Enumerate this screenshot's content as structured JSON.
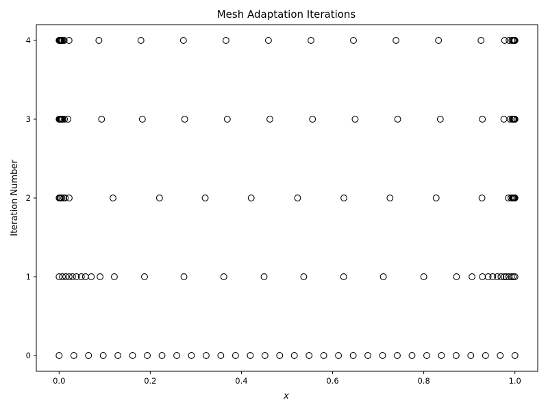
{
  "chart_data": {
    "type": "scatter",
    "title": "Mesh Adaptation Iterations",
    "xlabel": "x",
    "ylabel": "Iteration Number",
    "xlim": [
      -0.05,
      1.05
    ],
    "ylim": [
      -0.2,
      4.2
    ],
    "xticks": [
      0.0,
      0.2,
      0.4,
      0.6,
      0.8,
      1.0
    ],
    "xtick_labels": [
      "0.0",
      "0.2",
      "0.4",
      "0.6",
      "0.8",
      "1.0"
    ],
    "yticks": [
      0,
      1,
      2,
      3,
      4
    ],
    "ytick_labels": [
      "0",
      "1",
      "2",
      "3",
      "4"
    ],
    "grid": false,
    "marker": "open-circle",
    "marker_color": "#000000",
    "series": [
      {
        "iteration": 0,
        "x": [
          0.0,
          0.0323,
          0.0645,
          0.0968,
          0.129,
          0.1613,
          0.1935,
          0.2258,
          0.2581,
          0.2903,
          0.3226,
          0.3548,
          0.3871,
          0.4194,
          0.4516,
          0.4839,
          0.5161,
          0.5484,
          0.5806,
          0.6129,
          0.6452,
          0.6774,
          0.7097,
          0.7419,
          0.7742,
          0.8065,
          0.8387,
          0.871,
          0.9032,
          0.9355,
          0.9677,
          1.0
        ]
      },
      {
        "iteration": 1,
        "x": [
          0.0,
          0.0073,
          0.0147,
          0.022,
          0.0295,
          0.0381,
          0.0488,
          0.0579,
          0.0706,
          0.0899,
          0.1212,
          0.1874,
          0.2739,
          0.3614,
          0.4497,
          0.5367,
          0.6243,
          0.7113,
          0.8,
          0.8718,
          0.9058,
          0.9287,
          0.9412,
          0.9513,
          0.9612,
          0.9694,
          0.9764,
          0.9808,
          0.9865,
          0.9924,
          0.9964,
          1.0
        ]
      },
      {
        "iteration": 2,
        "x": [
          0.0,
          0.0018,
          0.0036,
          0.0063,
          0.0102,
          0.0134,
          0.0221,
          0.1183,
          0.2203,
          0.3205,
          0.4214,
          0.5232,
          0.6248,
          0.7259,
          0.8272,
          0.9277,
          0.9857,
          0.9914,
          0.9941,
          0.9958,
          0.9971,
          0.998,
          0.9986,
          0.999,
          0.9994,
          0.9997,
          0.9999,
          1.0
        ]
      },
      {
        "iteration": 3,
        "x": [
          0.0,
          0.0015,
          0.0029,
          0.0044,
          0.0059,
          0.0081,
          0.0118,
          0.0193,
          0.0932,
          0.1827,
          0.2756,
          0.369,
          0.4624,
          0.5559,
          0.6494,
          0.7428,
          0.8363,
          0.9285,
          0.9757,
          0.9894,
          0.9937,
          0.9962,
          0.9975,
          0.9985,
          0.9991,
          0.9995,
          0.9998,
          1.0
        ]
      },
      {
        "iteration": 4,
        "x": [
          0.0,
          0.0011,
          0.0022,
          0.0033,
          0.0044,
          0.0059,
          0.0081,
          0.0111,
          0.0218,
          0.0873,
          0.1795,
          0.2728,
          0.3661,
          0.4593,
          0.5526,
          0.6458,
          0.7391,
          0.8323,
          0.9256,
          0.9773,
          0.9872,
          0.9933,
          0.9958,
          0.9975,
          0.9985,
          0.9991,
          0.9995,
          0.9998,
          1.0
        ]
      }
    ]
  }
}
